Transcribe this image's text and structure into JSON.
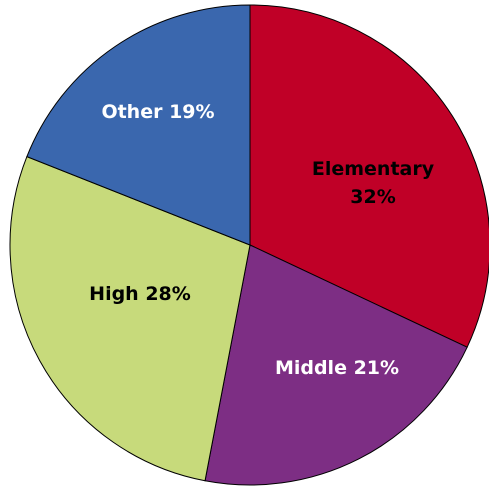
{
  "chart_data": {
    "type": "pie",
    "title": "",
    "legend": "none",
    "slices": [
      {
        "label": "Elementary",
        "value_label": "32%",
        "value": 32,
        "color": "#C00027",
        "label_color": "#000000"
      },
      {
        "label": "Middle",
        "value_label": "21%",
        "value": 21,
        "color": "#7D2E84",
        "label_color": "#FFFFFF"
      },
      {
        "label": "High",
        "value_label": "28%",
        "value": 28,
        "color": "#C7DA7B",
        "label_color": "#000000"
      },
      {
        "label": "Other",
        "value_label": "19%",
        "value": 19,
        "color": "#3A67AE",
        "label_color": "#FFFFFF"
      }
    ]
  }
}
